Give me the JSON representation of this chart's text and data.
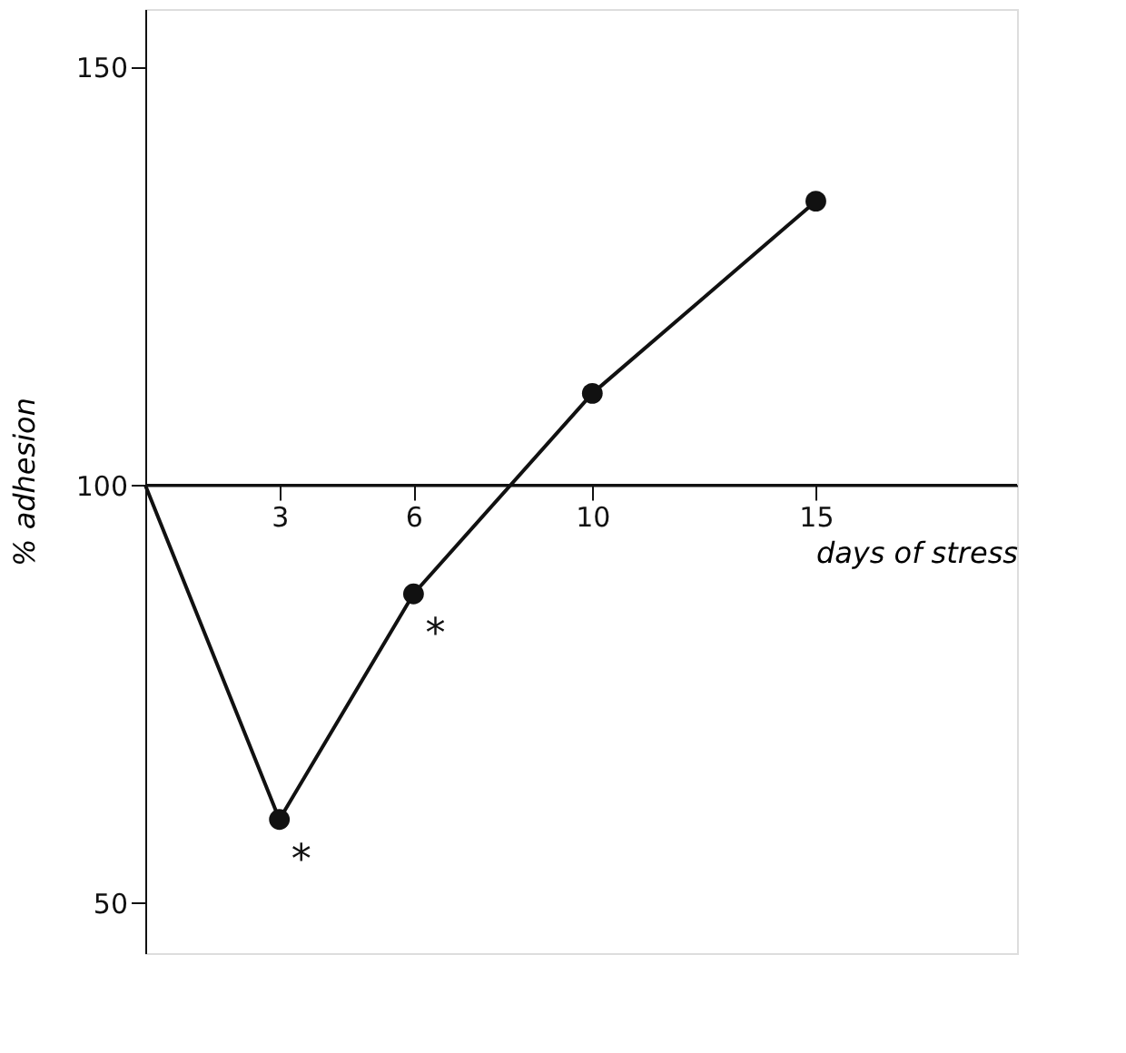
{
  "chart_data": {
    "type": "line",
    "xlabel": "days of stress",
    "ylabel": "% adhesion",
    "series": [
      {
        "color": "#111111",
        "x": [
          0,
          3,
          6,
          10,
          15
        ],
        "values": [
          100,
          60,
          87,
          111,
          134
        ],
        "marker": "none"
      },
      {
        "type": "scatter",
        "color": "#111111",
        "x": [
          3,
          6,
          10,
          15
        ],
        "values": [
          60,
          87,
          111,
          134
        ],
        "marker": "circle"
      }
    ],
    "xlim": [
      0,
      19.5
    ],
    "xticks": [
      3,
      6,
      10,
      15
    ],
    "ylim": [
      44,
      157
    ],
    "yticks": [
      50,
      100,
      150
    ],
    "ref_lines": [
      {
        "axis": "y",
        "value": 100
      }
    ],
    "annotations": [
      {
        "text": "*",
        "x": 3,
        "y": 60
      },
      {
        "text": "*",
        "x": 6,
        "y": 87
      }
    ],
    "grid": false
  }
}
